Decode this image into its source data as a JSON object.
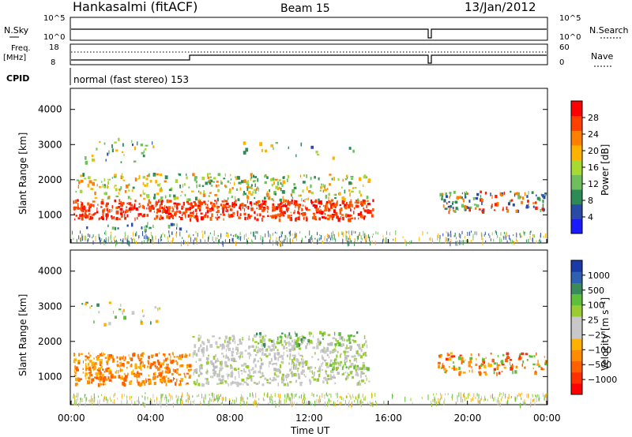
{
  "header": {
    "station": "Hankasalmi (fitACF)",
    "beam": "Beam 15",
    "date": "13/Jan/2012"
  },
  "top_panels": {
    "nsky_label": "N.Sky",
    "nsearch_label": "N.Search",
    "freq_label_1": "Freq.",
    "freq_label_2": "[MHz]",
    "nave_label": "Nave",
    "cpid_label": "CPID",
    "cpid_text": "normal (fast stereo) 153",
    "left_ticks_noise": [
      "10^5",
      "10^0"
    ],
    "right_ticks_noise": [
      "10^5",
      "10^0"
    ],
    "left_ticks_freq": [
      "18",
      "8"
    ],
    "right_ticks_nave": [
      "60",
      "0"
    ]
  },
  "axes": {
    "ylabel": "Slant Range [km]",
    "yticks": [
      "1000",
      "2000",
      "3000",
      "4000"
    ],
    "xlabel": "Time UT",
    "xticks": [
      "00:00",
      "04:00",
      "08:00",
      "12:00",
      "16:00",
      "20:00",
      "00:00"
    ]
  },
  "colorbars": {
    "power": {
      "label": "Power [dB]",
      "ticks": [
        "4",
        "8",
        "12",
        "16",
        "20",
        "24",
        "28"
      ],
      "colors": [
        "#1a1aff",
        "#2a4aa8",
        "#2e8b57",
        "#6fbf5f",
        "#a6d934",
        "#ffb300",
        "#ff8000",
        "#ff4000",
        "#ff0000"
      ]
    },
    "velocity": {
      "label": "Velocity [m s⁻¹]",
      "ticks": [
        "1000",
        "500",
        "100",
        "25",
        "−25",
        "−100",
        "−500",
        "−1000"
      ],
      "colors": [
        "#1a3aa8",
        "#2e5fb0",
        "#3a8a5a",
        "#5fbf3a",
        "#9acd32",
        "#c8c8c8",
        "#c8c8c8",
        "#ffb000",
        "#ff8c00",
        "#ff6000",
        "#ff3000",
        "#ff0000"
      ]
    }
  },
  "chart_data": [
    {
      "type": "heatmap",
      "title": "Power [dB]",
      "xlabel": "Time UT",
      "ylabel": "Slant Range [km]",
      "x_range_hours": [
        0,
        24
      ],
      "ylim": [
        200,
        4600
      ],
      "regions": [
        {
          "t": [
            0.1,
            15.2
          ],
          "r": [
            900,
            1500
          ],
          "level": "high (24-30 dB)"
        },
        {
          "t": [
            0.2,
            15.0
          ],
          "r": [
            1500,
            2200
          ],
          "level": "medium (12-20 dB)"
        },
        {
          "t": [
            0.5,
            4.5
          ],
          "r": [
            2500,
            3200
          ],
          "level": "low-medium (8-16 dB)"
        },
        {
          "t": [
            8.5,
            14.5
          ],
          "r": [
            2600,
            3100
          ],
          "level": "low (4-12 dB)"
        },
        {
          "t": [
            18.5,
            24.0
          ],
          "r": [
            1100,
            1700
          ],
          "level": "medium-high (12-28 dB)"
        }
      ]
    },
    {
      "type": "heatmap",
      "title": "Velocity [m s⁻¹]",
      "xlabel": "Time UT",
      "ylabel": "Slant Range [km]",
      "x_range_hours": [
        0,
        24
      ],
      "ylim": [
        200,
        4600
      ],
      "regions": [
        {
          "t": [
            0.1,
            6.0
          ],
          "r": [
            800,
            1700
          ],
          "level": "-100 to -500 (orange)"
        },
        {
          "t": [
            6.0,
            15.0
          ],
          "r": [
            800,
            2200
          ],
          "level": "-25 to 25 (grey)"
        },
        {
          "t": [
            9.0,
            14.5
          ],
          "r": [
            1900,
            2300
          ],
          "level": "100 (green)"
        },
        {
          "t": [
            13.0,
            15.0
          ],
          "r": [
            1200,
            1500
          ],
          "level": "25-100 (light green)"
        },
        {
          "t": [
            18.5,
            24.0
          ],
          "r": [
            1100,
            1700
          ],
          "level": "-100 to -1000 (orange-red)"
        }
      ]
    }
  ]
}
